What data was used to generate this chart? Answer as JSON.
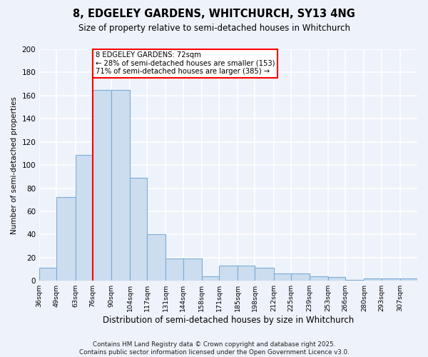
{
  "title": "8, EDGELEY GARDENS, WHITCHURCH, SY13 4NG",
  "subtitle": "Size of property relative to semi-detached houses in Whitchurch",
  "xlabel": "Distribution of semi-detached houses by size in Whitchurch",
  "ylabel": "Number of semi-detached properties",
  "categories": [
    "36sqm",
    "49sqm",
    "63sqm",
    "76sqm",
    "90sqm",
    "104sqm",
    "117sqm",
    "131sqm",
    "144sqm",
    "158sqm",
    "171sqm",
    "185sqm",
    "198sqm",
    "212sqm",
    "225sqm",
    "239sqm",
    "253sqm",
    "266sqm",
    "280sqm",
    "293sqm",
    "307sqm"
  ],
  "values": [
    11,
    72,
    109,
    165,
    165,
    89,
    40,
    19,
    19,
    4,
    13,
    13,
    11,
    6,
    6,
    4,
    3,
    1,
    2,
    2,
    2
  ],
  "bar_color": "#ccddf0",
  "bar_edge_color": "#7aadd4",
  "annotation_label": "8 EDGELEY GARDENS: 72sqm",
  "annotation_smaller": "← 28% of semi-detached houses are smaller (153)",
  "annotation_larger": "71% of semi-detached houses are larger (385) →",
  "redline_bin_index": 3,
  "footer": "Contains HM Land Registry data © Crown copyright and database right 2025.\nContains public sector information licensed under the Open Government Licence v3.0.",
  "ylim": [
    0,
    200
  ],
  "yticks": [
    0,
    20,
    40,
    60,
    80,
    100,
    120,
    140,
    160,
    180,
    200
  ],
  "background_color": "#eef2fa"
}
